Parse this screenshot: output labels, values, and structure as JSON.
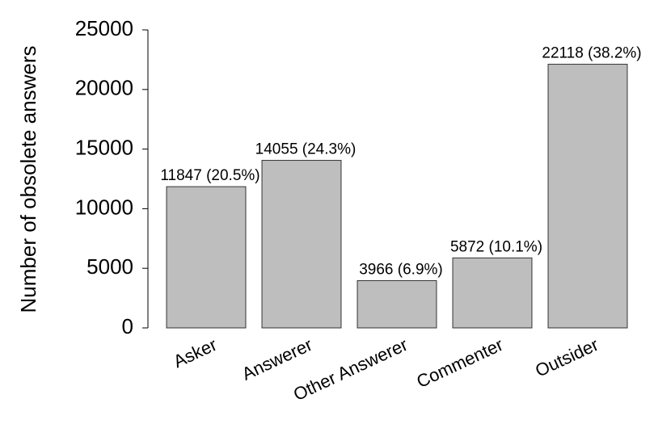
{
  "chart_data": {
    "type": "bar",
    "y_label": "Number of obsolete answers",
    "categories": [
      "Asker",
      "Answerer",
      "Other Answerer",
      "Commenter",
      "Outsider"
    ],
    "values": [
      11847,
      14055,
      3966,
      5872,
      22118
    ],
    "value_labels": [
      "11847 (20.5%)",
      "14055 (24.3%)",
      "3966 (6.9%)",
      "5872 (10.1%)",
      "22118 (38.2%)"
    ],
    "color": "#bebebe",
    "ylim": [
      0,
      25000
    ],
    "yticks": [
      0,
      5000,
      10000,
      15000,
      20000,
      25000
    ],
    "grid": false
  }
}
